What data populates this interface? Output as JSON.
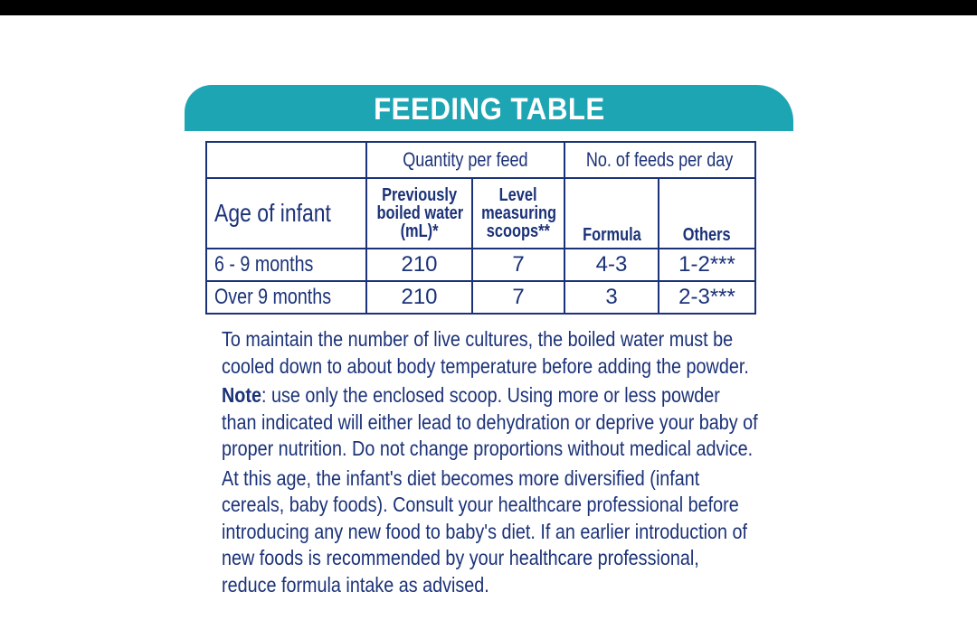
{
  "title": "FEEDING TABLE",
  "table": {
    "group_headers": {
      "quantity": "Quantity per feed",
      "feeds": "No. of feeds per day"
    },
    "columns": {
      "age": "Age of infant",
      "water_line1": "Previously",
      "water_line2": "boiled water",
      "water_line3": "(mL)*",
      "scoops_line1": "Level",
      "scoops_line2": "measuring",
      "scoops_line3": "scoops**",
      "formula": "Formula",
      "others": "Others"
    },
    "rows": [
      {
        "age": "6 - 9 months",
        "water": "210",
        "scoops": "7",
        "formula": "4-3",
        "others": "1-2***"
      },
      {
        "age": "Over 9 months",
        "water": "210",
        "scoops": "7",
        "formula": "3",
        "others": "2-3***"
      }
    ]
  },
  "notes": {
    "p1": "To maintain the number of live cultures, the boiled water must be cooled down to about body temperature before adding the powder.",
    "note_label": "Note",
    "p2_rest": ": use only the enclosed scoop. Using more or less powder than indicated will either lead to dehydration or deprive your baby of proper nutrition. Do not change proportions without medical advice.",
    "p3": "At this age, the infant's diet becomes more diversified (infant cereals, baby foods). Consult your healthcare professional before introducing any new food to baby's diet. If an earlier introduction of new foods is recommended by your healthcare professional, reduce formula intake as advised."
  },
  "colors": {
    "banner": "#1ea5b4",
    "text": "#1b3278"
  }
}
